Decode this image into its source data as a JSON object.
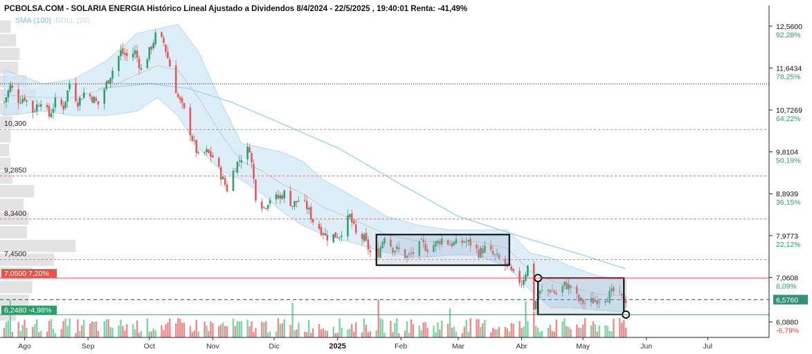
{
  "header": {
    "title": "PCBOLSA.COM - SOLARIA ENERGIA Histórico Lineal Ajustado a Dividendos 8/4/2024 - 22/5/2025 , 19:40:01 Renta: -41,49%",
    "legend_sma": "SMA (100)",
    "legend_boll": "BOLL (20)"
  },
  "colors": {
    "up": "#2e9e6a",
    "down": "#e05a5a",
    "sma": "#9fd2f0",
    "boll_fill": "#cfe7f7",
    "boll_line": "#a9d4ef",
    "vol_up": "#7fd3a8",
    "vol_down": "#f08a8a",
    "level_line": "#d9534f",
    "high_line": "#111111",
    "current_line": "#2b3cbf",
    "tag_red": "#e8524d",
    "tag_green": "#2e9e6a",
    "tag_current": "#33917a"
  },
  "chart_data": {
    "type": "candlestick",
    "title": "PCBOLSA.COM - SOLARIA ENERGIA Histórico Lineal Ajustado a Dividendos 8/4/2024 - 22/5/2025 , 19:40:01 Renta: -41,49%",
    "y_range": [
      5.75,
      12.8
    ],
    "date_range": [
      "2024-07-22",
      "2025-07-31"
    ],
    "right_axis_ticks": [
      {
        "price": "12,5600",
        "pct": "92,28%",
        "value": 12.56
      },
      {
        "price": "11,6434",
        "pct": "78,25%",
        "value": 11.6434
      },
      {
        "price": "10,7269",
        "pct": "64,22%",
        "value": 10.7269
      },
      {
        "price": "9,8104",
        "pct": "50,19%",
        "value": 9.8104
      },
      {
        "price": "8,8939",
        "pct": "36,15%",
        "value": 8.8939
      },
      {
        "price": "7,9773",
        "pct": "22,12%",
        "value": 7.9773
      },
      {
        "price": "7,0608",
        "pct": "8,09%",
        "value": 7.0608
      },
      {
        "price": "6,0880",
        "pct": "-6,79%",
        "value": 6.088
      }
    ],
    "x_ticks": [
      {
        "label": "Ago",
        "date": "2024-08-01"
      },
      {
        "label": "Sep",
        "date": "2024-09-01"
      },
      {
        "label": "Oct",
        "date": "2024-10-01"
      },
      {
        "label": "Nov",
        "date": "2024-11-01"
      },
      {
        "label": "Dic",
        "date": "2024-12-01"
      },
      {
        "label": "2025",
        "date": "2025-01-01",
        "bold": true
      },
      {
        "label": "Feb",
        "date": "2025-02-01"
      },
      {
        "label": "Mar",
        "date": "2025-03-01"
      },
      {
        "label": "Abr",
        "date": "2025-04-01"
      },
      {
        "label": "May",
        "date": "2025-05-01"
      },
      {
        "label": "Jun",
        "date": "2025-06-01"
      },
      {
        "label": "Jul",
        "date": "2025-07-01"
      }
    ],
    "support_levels": [
      {
        "label": "10,300",
        "value": 10.3
      },
      {
        "label": "9,2850",
        "value": 9.285
      },
      {
        "label": "8,3400",
        "value": 8.34
      },
      {
        "label": "7,4500",
        "value": 7.45
      }
    ],
    "high_line": 11.3,
    "current_price": {
      "label": "6,5760",
      "value": 6.576
    },
    "tags": [
      {
        "text": "7,0500  7,20%",
        "value": 7.05,
        "kind": "red"
      },
      {
        "text": "6,2480  -4,98%",
        "value": 6.248,
        "kind": "green"
      }
    ],
    "consolidation_boxes": [
      {
        "start": "2025-01-20",
        "end": "2025-03-26",
        "low": 7.33,
        "high": 8.0
      },
      {
        "start": "2025-04-09",
        "end": "2025-05-21",
        "low": 6.25,
        "high": 7.05
      }
    ],
    "circle_markers": [
      {
        "date": "2025-04-09",
        "value": 7.05
      },
      {
        "date": "2025-05-22",
        "value": 6.25
      }
    ],
    "price_path": [
      [
        "2024-07-22",
        10.9
      ],
      [
        "2024-07-25",
        11.25
      ],
      [
        "2024-07-29",
        10.95
      ],
      [
        "2024-08-01",
        11.0
      ],
      [
        "2024-08-05",
        10.7
      ],
      [
        "2024-08-09",
        10.95
      ],
      [
        "2024-08-13",
        10.6
      ],
      [
        "2024-08-16",
        10.9
      ],
      [
        "2024-08-20",
        10.8
      ],
      [
        "2024-08-23",
        11.3
      ],
      [
        "2024-08-27",
        10.9
      ],
      [
        "2024-08-30",
        11.1
      ],
      [
        "2024-09-03",
        11.0
      ],
      [
        "2024-09-06",
        10.85
      ],
      [
        "2024-09-10",
        11.3
      ],
      [
        "2024-09-13",
        11.6
      ],
      [
        "2024-09-17",
        12.0
      ],
      [
        "2024-09-20",
        11.9
      ],
      [
        "2024-09-24",
        12.0
      ],
      [
        "2024-09-27",
        11.6
      ],
      [
        "2024-10-01",
        12.0
      ],
      [
        "2024-10-04",
        12.35
      ],
      [
        "2024-10-08",
        12.2
      ],
      [
        "2024-10-11",
        11.7
      ],
      [
        "2024-10-15",
        11.0
      ],
      [
        "2024-10-18",
        10.7
      ],
      [
        "2024-10-22",
        10.1
      ],
      [
        "2024-10-25",
        9.7
      ],
      [
        "2024-10-29",
        9.8
      ],
      [
        "2024-11-01",
        9.7
      ],
      [
        "2024-11-05",
        9.3
      ],
      [
        "2024-11-08",
        9.0
      ],
      [
        "2024-11-12",
        9.5
      ],
      [
        "2024-11-15",
        9.7
      ],
      [
        "2024-11-19",
        9.9
      ],
      [
        "2024-11-22",
        8.85
      ],
      [
        "2024-11-26",
        8.6
      ],
      [
        "2024-11-29",
        8.8
      ],
      [
        "2024-12-03",
        8.8
      ],
      [
        "2024-12-06",
        8.9
      ],
      [
        "2024-12-10",
        8.65
      ],
      [
        "2024-12-13",
        8.75
      ],
      [
        "2024-12-17",
        8.6
      ],
      [
        "2024-12-20",
        8.3
      ],
      [
        "2024-12-24",
        8.1
      ],
      [
        "2024-12-27",
        7.95
      ],
      [
        "2025-01-02",
        8.0
      ],
      [
        "2025-01-07",
        8.4
      ],
      [
        "2025-01-10",
        8.0
      ],
      [
        "2025-01-14",
        7.9
      ],
      [
        "2025-01-17",
        7.6
      ],
      [
        "2025-01-21",
        7.6
      ],
      [
        "2025-01-24",
        8.0
      ],
      [
        "2025-01-28",
        7.7
      ],
      [
        "2025-01-31",
        7.65
      ],
      [
        "2025-02-04",
        7.5
      ],
      [
        "2025-02-07",
        7.6
      ],
      [
        "2025-02-11",
        7.8
      ],
      [
        "2025-02-14",
        7.7
      ],
      [
        "2025-02-18",
        7.8
      ],
      [
        "2025-02-21",
        7.9
      ],
      [
        "2025-02-25",
        7.8
      ],
      [
        "2025-02-28",
        7.8
      ],
      [
        "2025-03-04",
        7.85
      ],
      [
        "2025-03-07",
        7.8
      ],
      [
        "2025-03-11",
        7.6
      ],
      [
        "2025-03-14",
        7.7
      ],
      [
        "2025-03-18",
        7.55
      ],
      [
        "2025-03-21",
        7.45
      ],
      [
        "2025-03-25",
        7.3
      ],
      [
        "2025-03-28",
        7.1
      ],
      [
        "2025-04-01",
        6.95
      ],
      [
        "2025-04-04",
        7.3
      ],
      [
        "2025-04-07",
        6.4
      ],
      [
        "2025-04-09",
        6.7
      ],
      [
        "2025-04-11",
        6.75
      ],
      [
        "2025-04-15",
        6.8
      ],
      [
        "2025-04-18",
        6.7
      ],
      [
        "2025-04-22",
        6.9
      ],
      [
        "2025-04-25",
        6.85
      ],
      [
        "2025-04-29",
        6.55
      ],
      [
        "2025-05-02",
        6.5
      ],
      [
        "2025-05-06",
        6.55
      ],
      [
        "2025-05-09",
        6.6
      ],
      [
        "2025-05-13",
        6.65
      ],
      [
        "2025-05-16",
        6.75
      ],
      [
        "2025-05-20",
        6.6
      ],
      [
        "2025-05-22",
        6.576
      ]
    ],
    "sma_100": [
      [
        "2024-09-06",
        11.2
      ],
      [
        "2024-10-01",
        11.3
      ],
      [
        "2024-10-20",
        11.2
      ],
      [
        "2024-11-10",
        10.9
      ],
      [
        "2024-12-01",
        10.5
      ],
      [
        "2025-01-01",
        9.9
      ],
      [
        "2025-02-01",
        9.1
      ],
      [
        "2025-03-01",
        8.4
      ],
      [
        "2025-04-01",
        7.95
      ],
      [
        "2025-05-01",
        7.55
      ],
      [
        "2025-05-22",
        7.25
      ]
    ],
    "bollinger": {
      "dates": [
        "2024-07-22",
        "2024-08-10",
        "2024-08-25",
        "2024-09-10",
        "2024-09-25",
        "2024-10-05",
        "2024-10-15",
        "2024-10-25",
        "2024-11-05",
        "2024-11-15",
        "2024-11-25",
        "2024-12-05",
        "2024-12-15",
        "2024-12-25",
        "2025-01-10",
        "2025-01-25",
        "2025-02-10",
        "2025-02-25",
        "2025-03-10",
        "2025-03-25",
        "2025-04-05",
        "2025-04-15",
        "2025-04-25",
        "2025-05-08",
        "2025-05-22"
      ],
      "upper": [
        11.6,
        11.3,
        11.4,
        11.8,
        12.4,
        12.5,
        12.6,
        12.0,
        10.9,
        10.0,
        9.9,
        9.8,
        9.6,
        9.2,
        8.8,
        8.4,
        8.2,
        8.1,
        8.1,
        8.1,
        7.6,
        7.5,
        7.3,
        7.1,
        7.0
      ],
      "middle": [
        11.05,
        11.0,
        11.0,
        11.2,
        11.5,
        11.7,
        11.6,
        11.0,
        10.2,
        9.6,
        9.4,
        9.1,
        8.9,
        8.6,
        8.3,
        8.0,
        7.85,
        7.85,
        7.85,
        7.7,
        7.2,
        7.0,
        6.85,
        6.7,
        6.65
      ],
      "lower": [
        10.6,
        10.7,
        10.6,
        10.6,
        10.7,
        11.0,
        10.6,
        9.9,
        9.4,
        9.2,
        8.9,
        8.5,
        8.2,
        8.0,
        7.8,
        7.6,
        7.5,
        7.55,
        7.55,
        7.3,
        6.8,
        6.4,
        6.4,
        6.35,
        6.3
      ]
    },
    "volume_profile": [
      {
        "low": 12.4,
        "high": 12.7,
        "w": 0.3
      },
      {
        "low": 12.1,
        "high": 12.4,
        "w": 0.45
      },
      {
        "low": 11.8,
        "high": 12.1,
        "w": 0.55
      },
      {
        "low": 11.5,
        "high": 11.8,
        "w": 0.5
      },
      {
        "low": 11.2,
        "high": 11.5,
        "w": 0.75
      },
      {
        "low": 10.9,
        "high": 11.2,
        "w": 1.0
      },
      {
        "low": 10.6,
        "high": 10.9,
        "w": 0.55
      },
      {
        "low": 10.3,
        "high": 10.6,
        "w": 0.35
      },
      {
        "low": 10.0,
        "high": 10.3,
        "w": 0.3
      },
      {
        "low": 9.7,
        "high": 10.0,
        "w": 0.25
      },
      {
        "low": 9.4,
        "high": 9.7,
        "w": 0.3
      },
      {
        "low": 9.1,
        "high": 9.4,
        "w": 0.35
      },
      {
        "low": 8.8,
        "high": 9.1,
        "w": 0.95
      },
      {
        "low": 8.5,
        "high": 8.8,
        "w": 0.65
      },
      {
        "low": 8.2,
        "high": 8.5,
        "w": 0.8
      },
      {
        "low": 7.9,
        "high": 8.2,
        "w": 0.75
      },
      {
        "low": 7.6,
        "high": 7.9,
        "w": 2.1
      },
      {
        "low": 7.3,
        "high": 7.6,
        "w": 1.5
      },
      {
        "low": 7.0,
        "high": 7.3,
        "w": 0.9
      },
      {
        "low": 6.7,
        "high": 7.0,
        "w": 0.9
      },
      {
        "low": 6.4,
        "high": 6.7,
        "w": 0.8
      },
      {
        "low": 6.1,
        "high": 6.4,
        "w": 0.45
      }
    ]
  }
}
